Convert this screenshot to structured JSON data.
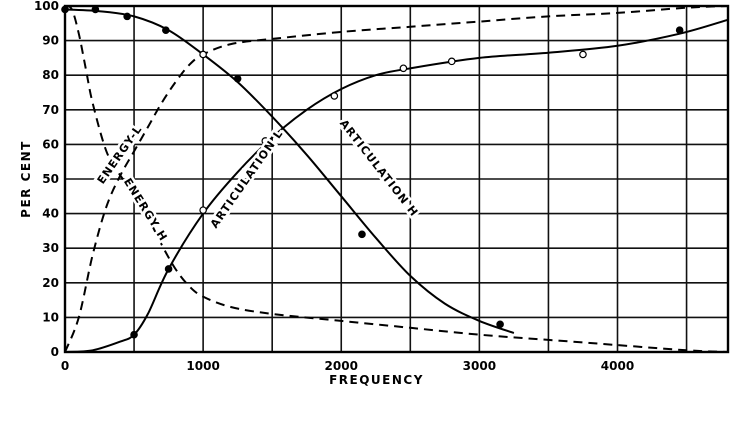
{
  "chart_data": {
    "type": "line",
    "xlabel": "FREQUENCY",
    "ylabel": "PER CENT",
    "xlim": [
      0,
      4800
    ],
    "ylim": [
      0,
      100
    ],
    "grid": true,
    "x_ticks": [
      "0",
      "1000",
      "2000",
      "3000",
      "4000"
    ],
    "y_ticks": [
      "0",
      "10",
      "20",
      "30",
      "40",
      "50",
      "60",
      "70",
      "80",
      "90",
      "100"
    ],
    "series": [
      {
        "name": "ARTICULATION H",
        "style": "solid",
        "marker": "filled",
        "x": [
          0,
          250,
          500,
          750,
          1000,
          1250,
          1500,
          1750,
          2000,
          2250,
          2500,
          2750,
          3000,
          3250
        ],
        "y": [
          99,
          98.5,
          97,
          93,
          86,
          78,
          68,
          57,
          45,
          33,
          22,
          14,
          9,
          5.5
        ],
        "markers_x": [
          0,
          220,
          450,
          730,
          1250,
          2150,
          3150
        ],
        "markers_y": [
          99,
          99,
          97,
          93,
          79,
          34,
          8
        ]
      },
      {
        "name": "ARTICULATION L",
        "style": "solid",
        "marker": "mixed",
        "x": [
          0,
          200,
          400,
          500,
          600,
          750,
          1000,
          1250,
          1500,
          1750,
          2000,
          2250,
          2500,
          3000,
          3500,
          4000,
          4450,
          4800
        ],
        "y": [
          0,
          0.5,
          3,
          5,
          11,
          24,
          40,
          52,
          62,
          70,
          76,
          80,
          82,
          85,
          86.5,
          88.5,
          92,
          96
        ],
        "markers_x": [
          500,
          750,
          1000,
          1450,
          1950,
          2450,
          2800,
          3750,
          4450
        ],
        "markers_y": [
          5,
          24,
          41,
          61,
          74,
          82,
          84,
          86,
          93
        ]
      },
      {
        "name": "ENERGY L",
        "style": "dashed",
        "x": [
          0,
          100,
          200,
          300,
          400,
          500,
          600,
          700,
          800,
          900,
          1000,
          1200,
          1500,
          2000,
          2500,
          3000,
          3500,
          4000,
          4500,
          4800
        ],
        "y": [
          0,
          10,
          28,
          42,
          51,
          58,
          65,
          72,
          78,
          83,
          86,
          89,
          90.5,
          92.5,
          94,
          95.5,
          97,
          98,
          99.5,
          100
        ],
        "markers_x": [
          1000
        ],
        "markers_y": [
          86
        ]
      },
      {
        "name": "ENERGY H",
        "style": "dashed",
        "x": [
          0,
          50,
          100,
          150,
          200,
          300,
          400,
          500,
          600,
          700,
          800,
          900,
          1000,
          1200,
          1500,
          2000,
          2500,
          3000,
          3500,
          4000,
          4500,
          4800
        ],
        "y": [
          100,
          99,
          92,
          82,
          72,
          58,
          51,
          46,
          39,
          31,
          24,
          19,
          16,
          13,
          11,
          9,
          7,
          5,
          3.5,
          2,
          0.5,
          0
        ]
      }
    ],
    "curve_labels": [
      {
        "text": "ENERGY-L",
        "x": 400,
        "y": 57,
        "angle": -55
      },
      {
        "text": "ENERGY H",
        "x": 580,
        "y": 41,
        "angle": 58
      },
      {
        "text": "ARTICULATION L",
        "x": 1320,
        "y": 50,
        "angle": -55
      },
      {
        "text": "ARTICULATION H",
        "x": 2270,
        "y": 53,
        "angle": 52
      }
    ]
  }
}
